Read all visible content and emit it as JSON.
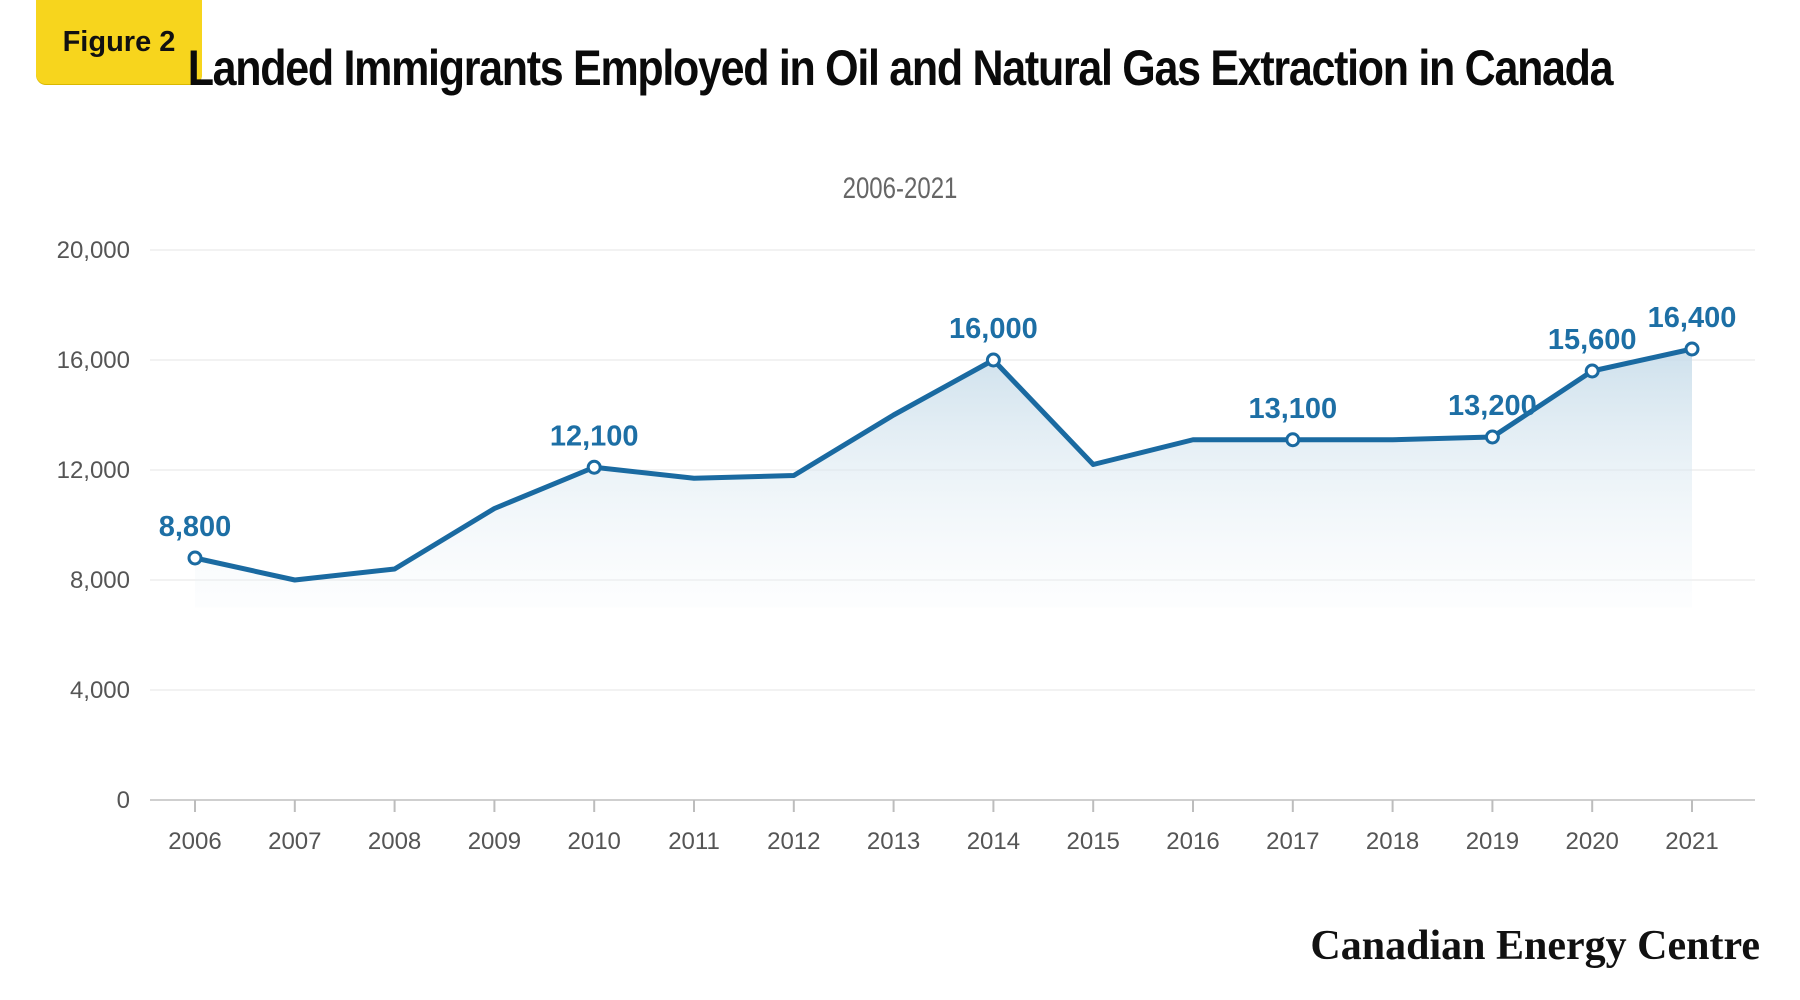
{
  "badge": {
    "label": "Figure 2"
  },
  "colors": {
    "line": "#1a6aa1",
    "label": "#1d6fa5",
    "badge": "#f7d51d",
    "grid": "#e6e6e6"
  },
  "footer": {
    "brand": "Canadian Energy Centre"
  },
  "chart_data": {
    "type": "line",
    "title": "Landed Immigrants Employed in Oil and Natural Gas Extraction in Canada",
    "subtitle": "2006-2021",
    "xlabel": "",
    "ylabel": "",
    "categories": [
      "2006",
      "2007",
      "2008",
      "2009",
      "2010",
      "2011",
      "2012",
      "2013",
      "2014",
      "2015",
      "2016",
      "2017",
      "2018",
      "2019",
      "2020",
      "2021"
    ],
    "series": [
      {
        "values": [
          8800,
          8000,
          8400,
          10600,
          12100,
          11700,
          11800,
          14000,
          16000,
          12200,
          13100,
          13100,
          13100,
          13200,
          15600,
          16400
        ]
      }
    ],
    "data_labels": [
      {
        "category": "2006",
        "text": "8,800"
      },
      {
        "category": "2010",
        "text": "12,100"
      },
      {
        "category": "2014",
        "text": "16,000"
      },
      {
        "category": "2017",
        "text": "13,100"
      },
      {
        "category": "2019",
        "text": "13,200"
      },
      {
        "category": "2020",
        "text": "15,600"
      },
      {
        "category": "2021",
        "text": "16,400"
      }
    ],
    "marker_categories": [
      "2006",
      "2010",
      "2014",
      "2017",
      "2019",
      "2020",
      "2021"
    ],
    "yticks": [
      0,
      4000,
      8000,
      12000,
      16000,
      20000
    ],
    "ytick_labels": [
      "0",
      "4,000",
      "8,000",
      "12,000",
      "16,000",
      "20,000"
    ],
    "ylim": [
      0,
      20000
    ],
    "grid": true,
    "legend": "none"
  }
}
